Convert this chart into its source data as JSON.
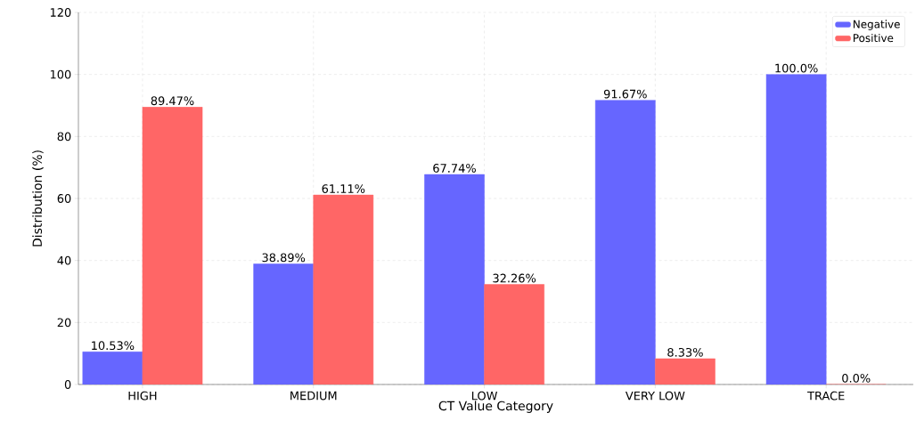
{
  "chart_data": {
    "type": "bar",
    "xlabel": "CT Value Category",
    "ylabel": "Distribution (%)",
    "categories": [
      "HIGH",
      "MEDIUM",
      "LOW",
      "VERY LOW",
      "TRACE"
    ],
    "series": [
      {
        "name": "Negative",
        "color": "#6666ff",
        "values": [
          10.53,
          38.89,
          67.74,
          91.67,
          100.0
        ],
        "value_labels": [
          "10.53%",
          "38.89%",
          "67.74%",
          "91.67%",
          "100.0%"
        ]
      },
      {
        "name": "Positive",
        "color": "#ff6666",
        "values": [
          89.47,
          61.11,
          32.26,
          8.33,
          0.0
        ],
        "value_labels": [
          "89.47%",
          "61.11%",
          "32.26%",
          "8.33%",
          "0.0%"
        ]
      }
    ],
    "ylim": [
      0,
      120
    ],
    "yticks": [
      0,
      20,
      40,
      60,
      80,
      100,
      120
    ],
    "grid": true,
    "legend": "top right"
  }
}
